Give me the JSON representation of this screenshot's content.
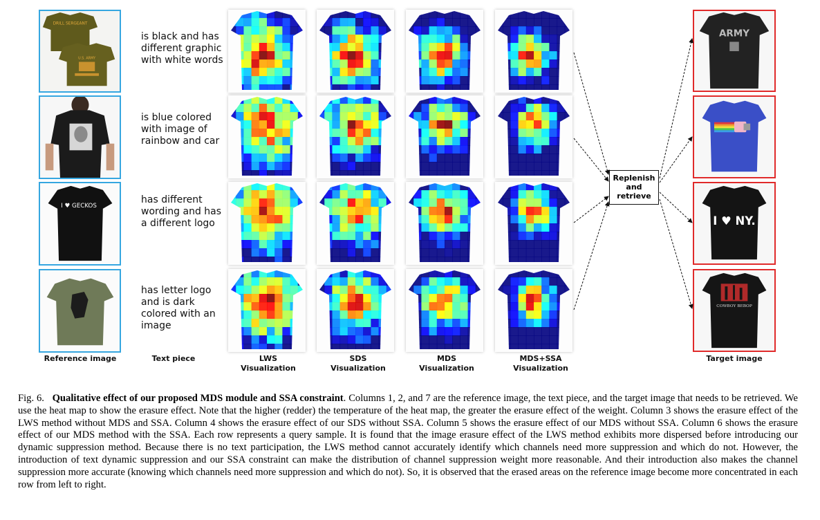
{
  "figure": {
    "rows": [
      {
        "text": "is black and has different graphic with white words"
      },
      {
        "text": "is blue colored with image of rainbow and car"
      },
      {
        "text": "has different wording and has a different logo"
      },
      {
        "text": "has letter logo and is dark colored with an image"
      }
    ],
    "column_labels": {
      "reference": "Reference image",
      "text": "Text piece",
      "lws": "LWS Visualization",
      "sds": "SDS Visualization",
      "mds": "MDS Visualization",
      "mds_ssa": "MDS+SSA Visualization",
      "target": "Target image"
    },
    "replenish_box": "Replenish and retrieve",
    "shirt_prints": {
      "row1_small": "DRILL SERGEANT",
      "row1_top": "U.S. ARMY",
      "row3": "I ♥ GECKOS",
      "target1": "ARMY",
      "target3": "I ♥ NY.",
      "target4": "COWBOY BEBOP"
    },
    "colors": {
      "reference_border": "#35a6e0",
      "target_border": "#e02a2a"
    }
  },
  "caption": {
    "fig_num": "Fig. 6.",
    "title": "Qualitative effect of our proposed MDS module and SSA constraint",
    "body": ". Columns 1, 2, and 7 are the reference image, the text piece, and the target image that needs to be retrieved. We use the heat map to show the erasure effect. Note that the higher (redder) the temperature of the heat map, the greater the erasure effect of the weight. Column 3 shows the erasure effect of the LWS method without MDS and SSA. Column 4 shows the erasure effect of our SDS without SSA. Column 5 shows the erasure effect of our MDS without SSA. Column 6 shows the erasure effect of our MDS method with the SSA. Each row represents a query sample. It is found that the image erasure effect of the LWS method exhibits more dispersed before introducing our dynamic suppression method. Because there is no text participation, the LWS method cannot accurately identify which channels need more suppression and which do not. However, the introduction of text dynamic suppression and our SSA constraint can make the distribution of channel suppression weight more reasonable. And their introduction also makes the channel suppression more accurate (knowing which channels need more suppression and which do not). So, it is observed that the erased areas on the reference image become more concentrated in each row from left to right."
  }
}
